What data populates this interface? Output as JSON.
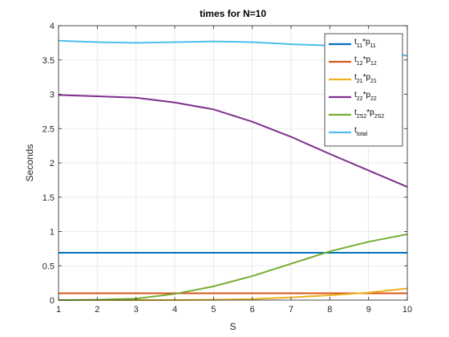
{
  "chart_data": {
    "type": "line",
    "title": "times for N=10",
    "xlabel": "S",
    "ylabel": "Seconds",
    "xlim": [
      1,
      10
    ],
    "ylim": [
      0,
      4
    ],
    "xticks": [
      "1",
      "2",
      "3",
      "4",
      "5",
      "6",
      "7",
      "8",
      "9",
      "10"
    ],
    "yticks": [
      "0",
      "0.5",
      "1",
      "1.5",
      "2",
      "2.5",
      "3",
      "3.5",
      "4"
    ],
    "grid": true,
    "legend_location": "top-right",
    "x": [
      1,
      2,
      3,
      4,
      5,
      6,
      7,
      8,
      9,
      10
    ],
    "series": [
      {
        "name": "t11*p11",
        "label_base": "t",
        "label_sub1": "11",
        "label_mid": "*p",
        "label_sub2": "11",
        "color": "#0072BD",
        "values": [
          0.69,
          0.69,
          0.69,
          0.69,
          0.69,
          0.69,
          0.69,
          0.69,
          0.69,
          0.69
        ]
      },
      {
        "name": "t12*p12",
        "label_base": "t",
        "label_sub1": "12",
        "label_mid": "*p",
        "label_sub2": "12",
        "color": "#D95319",
        "values": [
          0.1,
          0.1,
          0.1,
          0.1,
          0.1,
          0.1,
          0.1,
          0.1,
          0.1,
          0.1
        ]
      },
      {
        "name": "t21*p21",
        "label_base": "t",
        "label_sub1": "21",
        "label_mid": "*p",
        "label_sub2": "21",
        "color": "#EDB120",
        "values": [
          0.0,
          0.0,
          0.0,
          0.0,
          0.005,
          0.015,
          0.04,
          0.07,
          0.11,
          0.17
        ]
      },
      {
        "name": "t22*p22",
        "label_base": "t",
        "label_sub1": "22",
        "label_mid": "*p",
        "label_sub2": "22",
        "color": "#7E2F8E",
        "values": [
          2.99,
          2.97,
          2.95,
          2.88,
          2.78,
          2.6,
          2.38,
          2.13,
          1.89,
          1.65
        ]
      },
      {
        "name": "t2S2*p2S2",
        "label_base": "t",
        "label_sub1": "2S2",
        "label_mid": "*p",
        "label_sub2": "2S2",
        "color": "#77AC30",
        "values": [
          0.0,
          0.005,
          0.02,
          0.09,
          0.2,
          0.35,
          0.53,
          0.71,
          0.85,
          0.96
        ]
      },
      {
        "name": "ttotal",
        "label_base": "t",
        "label_sub1": "total",
        "label_mid": "",
        "label_sub2": "",
        "color": "#4DBEEE",
        "values": [
          3.78,
          3.76,
          3.75,
          3.76,
          3.77,
          3.76,
          3.73,
          3.71,
          3.67,
          3.56
        ]
      }
    ]
  }
}
